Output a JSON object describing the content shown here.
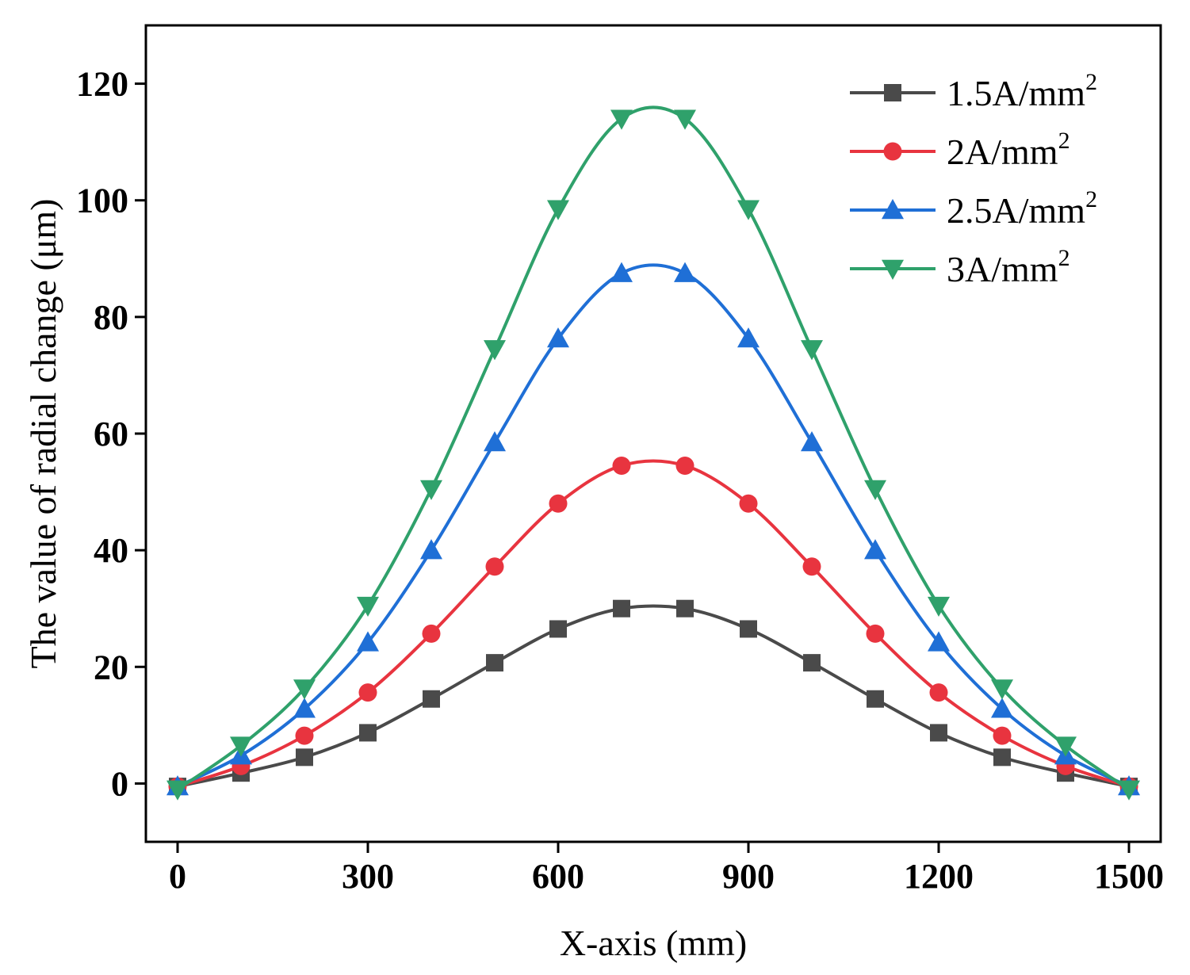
{
  "chart_data": {
    "type": "line",
    "title": "",
    "xlabel": "X-axis (mm)",
    "ylabel": "The value of radial change (μm)",
    "xlim": [
      -50,
      1550
    ],
    "ylim": [
      -10,
      130
    ],
    "xticks": [
      0,
      300,
      600,
      900,
      1200,
      1500
    ],
    "yticks": [
      0,
      20,
      40,
      60,
      80,
      100,
      120
    ],
    "grid": false,
    "legend_position": "top-right",
    "x": [
      0,
      100,
      200,
      300,
      400,
      500,
      600,
      700,
      800,
      900,
      1000,
      1100,
      1200,
      1300,
      1400,
      1500
    ],
    "series": [
      {
        "name": "1.5A/mm",
        "superscript": "2",
        "color": "#4a4a4a",
        "marker": "square",
        "values": [
          -0.5,
          1.8,
          4.5,
          8.7,
          14.5,
          20.7,
          26.5,
          30.0,
          30.0,
          26.5,
          20.7,
          14.5,
          8.7,
          4.5,
          1.8,
          -0.5
        ]
      },
      {
        "name": "2A/mm",
        "superscript": "2",
        "color": "#e8343f",
        "marker": "circle",
        "values": [
          -0.5,
          3.0,
          8.2,
          15.6,
          25.7,
          37.2,
          48.0,
          54.5,
          54.5,
          48.0,
          37.2,
          25.7,
          15.6,
          8.2,
          3.0,
          -0.5
        ]
      },
      {
        "name": "2.5A/mm",
        "superscript": "2",
        "color": "#1f6fd6",
        "marker": "triangle-up",
        "values": [
          -0.5,
          4.8,
          12.8,
          24.2,
          40.0,
          58.5,
          76.3,
          87.5,
          87.5,
          76.3,
          58.5,
          40.0,
          24.2,
          12.8,
          4.8,
          -0.5
        ]
      },
      {
        "name": "3A/mm",
        "superscript": "2",
        "color": "#2fa16b",
        "marker": "triangle-down",
        "values": [
          -1.0,
          6.5,
          16.3,
          30.5,
          50.5,
          74.5,
          98.5,
          114.0,
          114.0,
          98.5,
          74.5,
          50.5,
          30.5,
          16.3,
          6.5,
          -1.0
        ]
      }
    ]
  }
}
